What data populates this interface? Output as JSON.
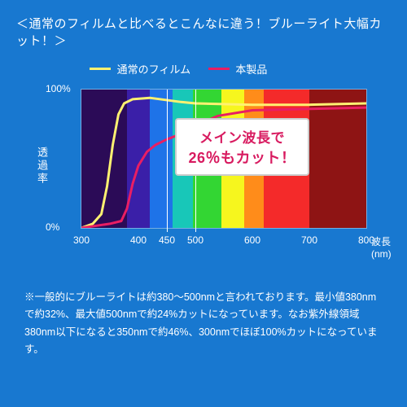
{
  "header": "＜通常のフィルムと比べるとこんなに違う！ブルーライト大幅カット！＞",
  "legend": {
    "a": {
      "label": "通常のフィルム",
      "color": "#fff171"
    },
    "b": {
      "label": "本製品",
      "color": "#e91e63"
    }
  },
  "chart": {
    "type": "line",
    "ylabel": "透過率",
    "ylim": [
      0,
      100
    ],
    "yticks": [
      0,
      100
    ],
    "ytick_labels": [
      "0%",
      "100%"
    ],
    "xlabel": "波長(nm)",
    "xlim": [
      300,
      800
    ],
    "xticks": [
      300,
      400,
      450,
      500,
      600,
      700,
      800
    ],
    "guide_lines_x": [
      450,
      500
    ],
    "spectrum_bands": [
      {
        "color": "#2b0b57",
        "stop": 380
      },
      {
        "color": "#3a1fa8",
        "stop": 420
      },
      {
        "color": "#1e73e8",
        "stop": 460
      },
      {
        "color": "#18c7b8",
        "stop": 495
      },
      {
        "color": "#33d633",
        "stop": 545
      },
      {
        "color": "#f6f61e",
        "stop": 585
      },
      {
        "color": "#ff8c1a",
        "stop": 620
      },
      {
        "color": "#f42a2a",
        "stop": 700
      },
      {
        "color": "#8e1414",
        "stop": 800
      }
    ],
    "series_a": {
      "color": "#fff171",
      "width": 3,
      "points": [
        [
          300,
          0
        ],
        [
          320,
          3
        ],
        [
          335,
          10
        ],
        [
          345,
          30
        ],
        [
          355,
          60
        ],
        [
          365,
          82
        ],
        [
          375,
          90
        ],
        [
          390,
          93
        ],
        [
          420,
          94
        ],
        [
          475,
          91
        ],
        [
          500,
          90
        ],
        [
          600,
          89
        ],
        [
          700,
          89
        ],
        [
          800,
          90
        ]
      ]
    },
    "series_b": {
      "color": "#e91e63",
      "width": 3,
      "points": [
        [
          300,
          0
        ],
        [
          350,
          3
        ],
        [
          370,
          5
        ],
        [
          380,
          14
        ],
        [
          390,
          32
        ],
        [
          400,
          45
        ],
        [
          415,
          55
        ],
        [
          430,
          60
        ],
        [
          450,
          64
        ],
        [
          475,
          68
        ],
        [
          500,
          74
        ],
        [
          540,
          81
        ],
        [
          600,
          85
        ],
        [
          700,
          86
        ],
        [
          800,
          87
        ]
      ]
    },
    "callout": {
      "line1": "メイン波長で",
      "line2": "26％もカット！",
      "pointer_to_x": 475,
      "pointer_to_y": 68
    },
    "plot_bg": "#0b2f63"
  },
  "footnote": "※一般的にブルーライトは約380～500nmと言われております。最小値380nmで約32%、最大値500nmで約24%カットになっています。なお紫外線領域380nm以下になると350nmで約46%、300nmでほぼ100%カットになっています。"
}
